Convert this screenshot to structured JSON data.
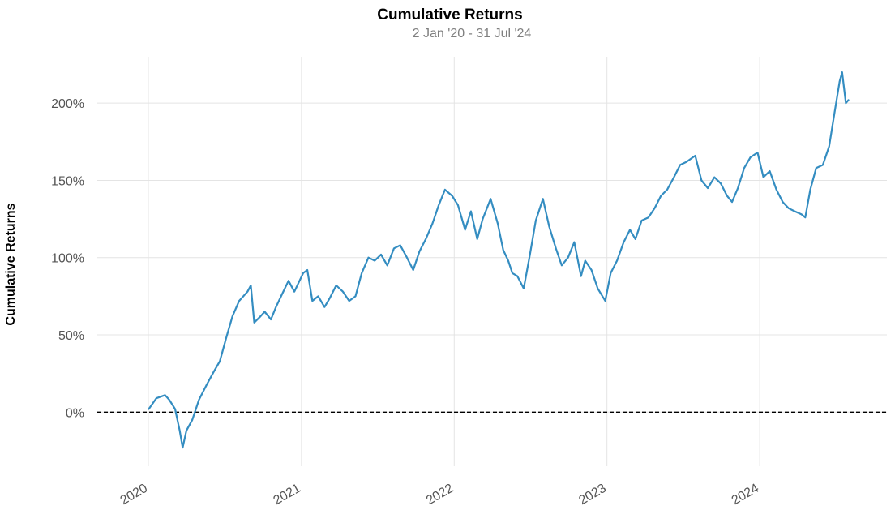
{
  "chart_data": {
    "type": "line",
    "title": "Cumulative Returns",
    "subtitle": "2 Jan '20 - 31 Jul '24",
    "ylabel": "Cumulative Returns",
    "xlabel": "",
    "grid": true,
    "ylim": [
      -0.35,
      2.3
    ],
    "xlim": [
      "2019-09-01",
      "2024-10-31"
    ],
    "y_ticks": [
      0,
      0.5,
      1.0,
      1.5,
      2.0
    ],
    "y_tick_labels": [
      "0%",
      "50%",
      "100%",
      "150%",
      "200%"
    ],
    "x_ticks": [
      "2020-01-01",
      "2021-01-01",
      "2022-01-01",
      "2023-01-01",
      "2024-01-01"
    ],
    "x_tick_labels": [
      "2020",
      "2021",
      "2022",
      "2023",
      "2024"
    ],
    "baseline": 0,
    "line_color": "#348dc1",
    "series": [
      {
        "x": [
          "2020-01-02",
          "2020-01-20",
          "2020-02-10",
          "2020-02-20",
          "2020-03-05",
          "2020-03-16",
          "2020-03-23",
          "2020-04-01",
          "2020-04-15",
          "2020-05-01",
          "2020-05-20",
          "2020-06-05",
          "2020-06-20",
          "2020-07-05",
          "2020-07-20",
          "2020-08-05",
          "2020-08-25",
          "2020-09-02",
          "2020-09-10",
          "2020-09-25",
          "2020-10-05",
          "2020-10-20",
          "2020-11-01",
          "2020-11-15",
          "2020-12-01",
          "2020-12-15",
          "2021-01-05",
          "2021-01-15",
          "2021-01-27",
          "2021-02-10",
          "2021-02-25",
          "2021-03-10",
          "2021-03-25",
          "2021-04-10",
          "2021-04-25",
          "2021-05-10",
          "2021-05-25",
          "2021-06-10",
          "2021-06-25",
          "2021-07-10",
          "2021-07-25",
          "2021-08-10",
          "2021-08-25",
          "2021-09-10",
          "2021-09-25",
          "2021-10-10",
          "2021-10-25",
          "2021-11-10",
          "2021-11-25",
          "2021-12-10",
          "2021-12-27",
          "2022-01-10",
          "2022-01-27",
          "2022-02-10",
          "2022-02-25",
          "2022-03-10",
          "2022-03-29",
          "2022-04-15",
          "2022-04-28",
          "2022-05-10",
          "2022-05-20",
          "2022-06-01",
          "2022-06-16",
          "2022-07-01",
          "2022-07-15",
          "2022-08-01",
          "2022-08-16",
          "2022-09-01",
          "2022-09-15",
          "2022-09-30",
          "2022-10-15",
          "2022-10-31",
          "2022-11-10",
          "2022-11-25",
          "2022-12-10",
          "2022-12-28",
          "2023-01-10",
          "2023-01-25",
          "2023-02-10",
          "2023-02-25",
          "2023-03-10",
          "2023-03-25",
          "2023-04-10",
          "2023-04-25",
          "2023-05-10",
          "2023-05-25",
          "2023-06-10",
          "2023-06-25",
          "2023-07-10",
          "2023-07-31",
          "2023-08-15",
          "2023-08-30",
          "2023-09-15",
          "2023-09-30",
          "2023-10-15",
          "2023-10-27",
          "2023-11-10",
          "2023-11-25",
          "2023-12-10",
          "2023-12-27",
          "2024-01-10",
          "2024-01-25",
          "2024-02-10",
          "2024-02-25",
          "2024-03-10",
          "2024-03-25",
          "2024-04-10",
          "2024-04-19",
          "2024-05-01",
          "2024-05-15",
          "2024-05-31",
          "2024-06-15",
          "2024-06-28",
          "2024-07-10",
          "2024-07-16",
          "2024-07-25",
          "2024-07-31"
        ],
        "y": [
          0.02,
          0.09,
          0.11,
          0.08,
          0.02,
          -0.12,
          -0.23,
          -0.12,
          -0.05,
          0.08,
          0.18,
          0.26,
          0.33,
          0.48,
          0.62,
          0.72,
          0.78,
          0.82,
          0.58,
          0.62,
          0.65,
          0.6,
          0.68,
          0.76,
          0.85,
          0.78,
          0.9,
          0.92,
          0.72,
          0.75,
          0.68,
          0.74,
          0.82,
          0.78,
          0.72,
          0.75,
          0.9,
          1.0,
          0.98,
          1.02,
          0.95,
          1.06,
          1.08,
          1.0,
          0.92,
          1.04,
          1.12,
          1.22,
          1.34,
          1.44,
          1.4,
          1.34,
          1.18,
          1.3,
          1.12,
          1.25,
          1.38,
          1.22,
          1.05,
          0.98,
          0.9,
          0.88,
          0.8,
          1.02,
          1.24,
          1.38,
          1.2,
          1.06,
          0.95,
          1.0,
          1.1,
          0.88,
          0.98,
          0.92,
          0.8,
          0.72,
          0.9,
          0.98,
          1.1,
          1.18,
          1.12,
          1.24,
          1.26,
          1.32,
          1.4,
          1.44,
          1.52,
          1.6,
          1.62,
          1.66,
          1.5,
          1.45,
          1.52,
          1.48,
          1.4,
          1.36,
          1.45,
          1.58,
          1.65,
          1.68,
          1.52,
          1.56,
          1.44,
          1.36,
          1.32,
          1.3,
          1.28,
          1.26,
          1.44,
          1.58,
          1.6,
          1.72,
          1.94,
          2.14,
          2.2,
          2.0,
          2.02
        ]
      }
    ]
  }
}
